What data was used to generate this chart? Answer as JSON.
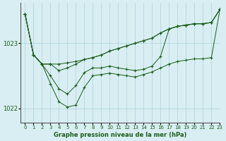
{
  "background_color": "#d9eef2",
  "grid_color": "#aad4dc",
  "line_color": "#1a5c1a",
  "title": "Graphe pression niveau de la mer (hPa)",
  "xlim": [
    -0.5,
    23
  ],
  "ylim": [
    1021.78,
    1023.62
  ],
  "yticks": [
    1022,
    1023
  ],
  "xticks": [
    0,
    1,
    2,
    3,
    4,
    5,
    6,
    7,
    8,
    9,
    10,
    11,
    12,
    13,
    14,
    15,
    16,
    17,
    18,
    19,
    20,
    21,
    22,
    23
  ],
  "series": [
    [
      1023.45,
      1022.82,
      1022.68,
      1022.68,
      1022.68,
      1022.7,
      1022.72,
      1022.75,
      1022.78,
      1022.82,
      1022.88,
      1022.92,
      1022.96,
      1023.0,
      1023.04,
      1023.08,
      1023.16,
      1023.22,
      1023.26,
      1023.28,
      1023.3,
      1023.3,
      1023.32,
      1023.52
    ],
    [
      1023.45,
      1022.82,
      1022.68,
      1022.68,
      1022.58,
      1022.62,
      1022.68,
      1022.75,
      1022.78,
      1022.82,
      1022.88,
      1022.92,
      1022.96,
      1023.0,
      1023.04,
      1023.08,
      1023.16,
      1023.22,
      1023.26,
      1023.28,
      1023.3,
      1023.3,
      1023.32,
      1023.52
    ],
    [
      1023.45,
      1022.82,
      1022.68,
      1022.5,
      1022.3,
      1022.22,
      1022.35,
      1022.55,
      1022.62,
      1022.62,
      1022.65,
      1022.62,
      1022.6,
      1022.58,
      1022.6,
      1022.65,
      1022.8,
      1023.22,
      1023.26,
      1023.28,
      1023.3,
      1023.3,
      1023.32,
      1023.52
    ],
    [
      1023.45,
      1022.82,
      1022.68,
      1022.38,
      1022.1,
      1022.02,
      1022.05,
      1022.32,
      1022.5,
      1022.52,
      1022.54,
      1022.52,
      1022.5,
      1022.48,
      1022.52,
      1022.56,
      1022.62,
      1022.68,
      1022.72,
      1022.74,
      1022.76,
      1022.76,
      1022.78,
      1023.52
    ]
  ]
}
